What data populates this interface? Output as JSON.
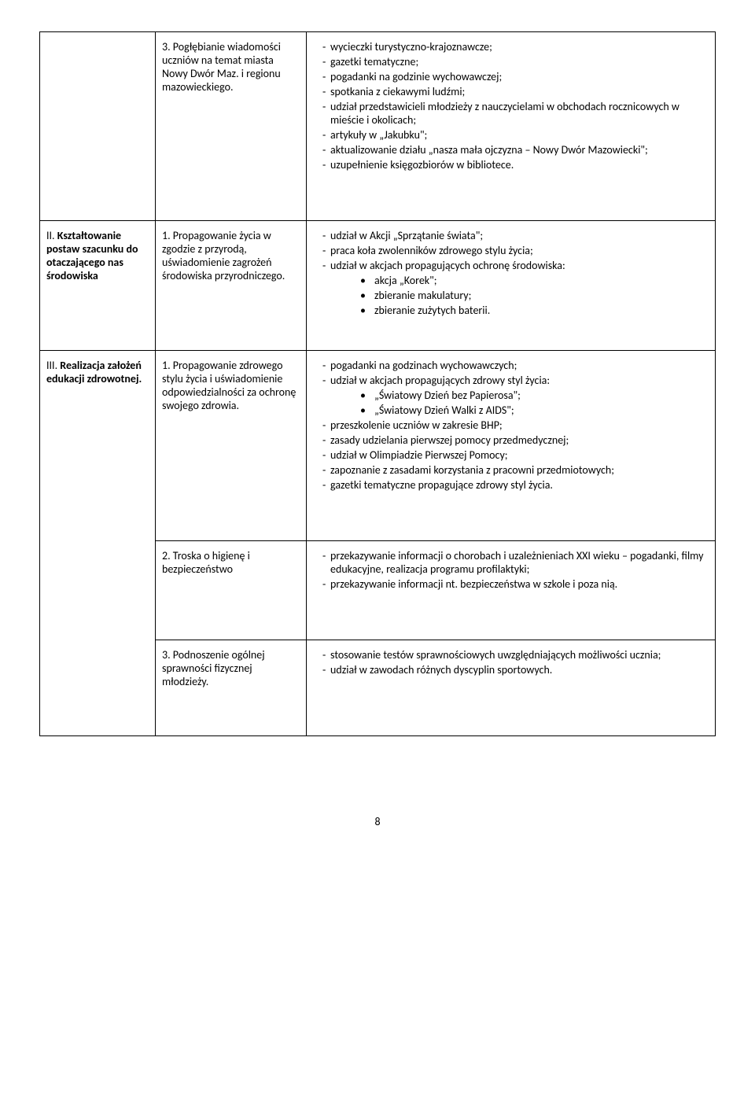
{
  "rows": [
    {
      "col1": "",
      "col2": "3. Pogłębianie wiadomości uczniów na temat miasta Nowy Dwór Maz.  i regionu mazowieckiego.",
      "col3_dash": [
        "wycieczki turystyczno-krajoznawcze;",
        "gazetki tematyczne;",
        "pogadanki na godzinie wychowawczej;",
        "spotkania z ciekawymi ludźmi;",
        "udział przedstawicieli młodzieży z nauczycielami w obchodach rocznicowych w mieście i okolicach;",
        "artykuły w „Jakubku\";",
        "aktualizowanie działu „nasza mała ojczyzna – Nowy Dwór Mazowiecki\";",
        "uzupełnienie księgozbiorów w bibliotece."
      ]
    },
    {
      "col1_html": "II. <span class=\"bold\">Kształtowanie postaw szacunku do otaczającego nas środowiska</span>",
      "col2": "1. Propagowanie życia w zgodzie z przyrodą, uświadomienie zagrożeń środowiska przyrodniczego.",
      "col3_dash": [
        "udział w Akcji „Sprzątanie świata\";",
        "praca koła zwolenników zdrowego stylu życia;",
        "udział w akcjach propagujących ochronę środowiska:"
      ],
      "col3_bullets": [
        "akcja „Korek\";",
        "zbieranie makulatury;",
        "zbieranie zużytych baterii."
      ]
    },
    {
      "col1_html": "III. <span class=\"bold\">Realizacja założeń edukacji zdrowotnej.</span>",
      "col2": "1. Propagowanie zdrowego stylu życia i uświadomienie odpowiedzialności za ochronę swojego zdrowia.",
      "col3_dash_a": [
        "pogadanki na godzinach wychowawczych;",
        "udział w akcjach propagujących zdrowy styl życia:"
      ],
      "col3_bullets": [
        "„Światowy Dzień bez Papierosa\";",
        "„Światowy Dzień Walki z AIDS\";"
      ],
      "col3_dash_b": [
        "przeszkolenie uczniów w zakresie BHP;",
        "zasady udzielania pierwszej pomocy przedmedycznej;",
        "udział w Olimpiadzie Pierwszej Pomocy;",
        "zapoznanie z zasadami korzystania z pracowni przedmiotowych;",
        "gazetki tematyczne propagujące zdrowy styl życia."
      ]
    },
    {
      "col2": "2. Troska o higienę i bezpieczeństwo",
      "col3_dash": [
        "przekazywanie informacji o chorobach i uzależnieniach XXI wieku – pogadanki, filmy edukacyjne, realizacja programu profilaktyki;",
        "przekazywanie informacji nt. bezpieczeństwa  w szkole i poza nią."
      ]
    },
    {
      "col2": "3. Podnoszenie ogólnej sprawności fizycznej młodzieży.",
      "col3_dash": [
        "stosowanie testów sprawnościowych uwzględniających możliwości ucznia;",
        "udział w zawodach różnych dyscyplin sportowych."
      ]
    }
  ],
  "page_number": "8"
}
